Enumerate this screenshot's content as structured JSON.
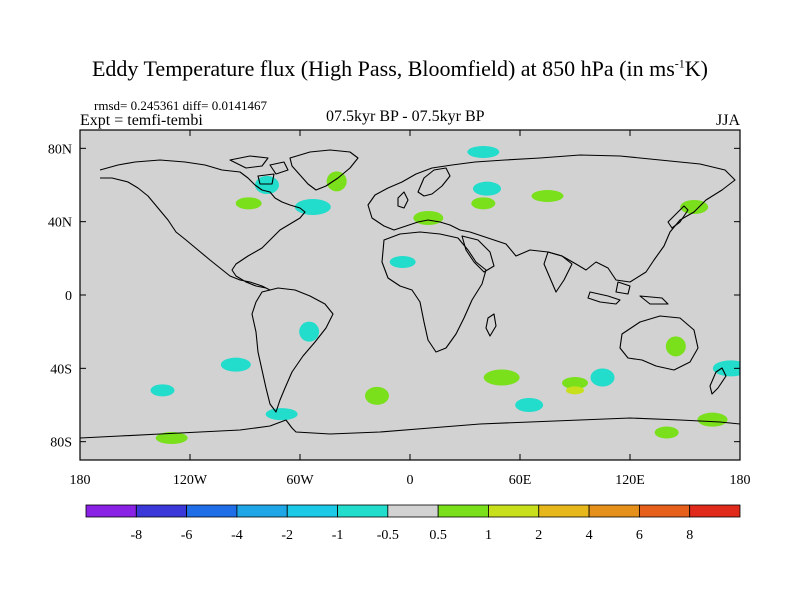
{
  "title": {
    "main": "Eddy Temperature flux (High Pass, Bloomfield) at 850 hPa (in ms",
    "sup": "-1",
    "tail": "K)"
  },
  "stats": "rmsd= 0.245361 diff= 0.0141467",
  "experiment": "Expt = temfi-tembi",
  "center_label": "07.5kyr BP - 07.5kyr BP",
  "season": "JJA",
  "colors": {
    "land_background": "#d2d2d2",
    "coastline": "#000000",
    "levels": [
      "#8a22e6",
      "#3a38d8",
      "#1f6ee8",
      "#1fa6e6",
      "#1cc9e6",
      "#22dccc",
      "#d2d2d2",
      "#7ae01c",
      "#c8e01c",
      "#e6b81c",
      "#e6901c",
      "#e6601c",
      "#e02a1c"
    ]
  },
  "chart_data": {
    "type": "heatmap",
    "title": "Eddy Temperature flux (High Pass, Bloomfield) at 850 hPa (in ms-1K)",
    "xlabel": "",
    "ylabel": "",
    "xlim": [
      -180,
      180
    ],
    "ylim": [
      -90,
      90
    ],
    "x_ticks": [
      {
        "value": -180,
        "label": "180"
      },
      {
        "value": -120,
        "label": "120W"
      },
      {
        "value": -60,
        "label": "60W"
      },
      {
        "value": 0,
        "label": "0"
      },
      {
        "value": 60,
        "label": "60E"
      },
      {
        "value": 120,
        "label": "120E"
      },
      {
        "value": 180,
        "label": "180"
      }
    ],
    "y_ticks": [
      {
        "value": 80,
        "label": "80N"
      },
      {
        "value": 40,
        "label": "40N"
      },
      {
        "value": 0,
        "label": "0"
      },
      {
        "value": -40,
        "label": "40S"
      },
      {
        "value": -80,
        "label": "80S"
      }
    ],
    "colorbar_levels": [
      "-8",
      "-6",
      "-4",
      "-2",
      "-1",
      "-0.5",
      "0.5",
      "1",
      "2",
      "4",
      "6",
      "8"
    ],
    "anomaly_regions": [
      {
        "lon": 40,
        "lat": 78,
        "level": "-1"
      },
      {
        "lon": 42,
        "lat": 58,
        "level": "-1"
      },
      {
        "lon": -78,
        "lat": 60,
        "level": "-1"
      },
      {
        "lon": -53,
        "lat": 48,
        "level": "-1"
      },
      {
        "lon": -4,
        "lat": 18,
        "level": "-1"
      },
      {
        "lon": -55,
        "lat": -20,
        "level": "-1"
      },
      {
        "lon": -95,
        "lat": -38,
        "level": "-1"
      },
      {
        "lon": -135,
        "lat": -52,
        "level": "-1"
      },
      {
        "lon": -70,
        "lat": -65,
        "level": "-1"
      },
      {
        "lon": 65,
        "lat": -60,
        "level": "-1"
      },
      {
        "lon": 105,
        "lat": -45,
        "level": "-1"
      },
      {
        "lon": 175,
        "lat": -40,
        "level": "-1"
      },
      {
        "lon": -88,
        "lat": 50,
        "level": "1"
      },
      {
        "lon": -40,
        "lat": 62,
        "level": "1"
      },
      {
        "lon": 10,
        "lat": 42,
        "level": "1"
      },
      {
        "lon": 40,
        "lat": 50,
        "level": "1"
      },
      {
        "lon": 75,
        "lat": 54,
        "level": "1"
      },
      {
        "lon": 155,
        "lat": 48,
        "level": "1"
      },
      {
        "lon": -18,
        "lat": -55,
        "level": "1"
      },
      {
        "lon": 50,
        "lat": -45,
        "level": "1"
      },
      {
        "lon": 90,
        "lat": -48,
        "level": "1"
      },
      {
        "lon": 145,
        "lat": -28,
        "level": "1"
      },
      {
        "lon": 165,
        "lat": -68,
        "level": "1"
      },
      {
        "lon": 140,
        "lat": -75,
        "level": "1"
      },
      {
        "lon": -130,
        "lat": -78,
        "level": "1"
      },
      {
        "lon": 90,
        "lat": -52,
        "level": "2"
      }
    ]
  }
}
